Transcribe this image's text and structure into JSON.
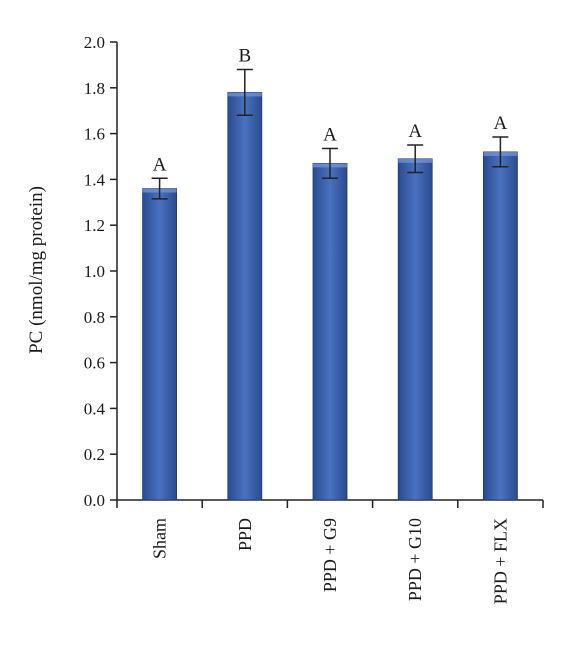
{
  "chart_data": {
    "type": "bar",
    "title": "",
    "xlabel": "",
    "ylabel": "PC (nmol/mg protein)",
    "ylim": [
      0,
      2.0
    ],
    "yticks": [
      "0.0",
      "0.2",
      "0.4",
      "0.6",
      "0.8",
      "1.0",
      "1.2",
      "1.4",
      "1.6",
      "1.8",
      "2.0"
    ],
    "categories": [
      "Sham",
      "PPD",
      "PPD + G9",
      "PPD + G10",
      "PPD + FLX"
    ],
    "values": [
      1.36,
      1.78,
      1.47,
      1.49,
      1.52
    ],
    "errors": [
      0.045,
      0.1,
      0.065,
      0.06,
      0.065
    ],
    "significance": [
      "A",
      "B",
      "A",
      "A",
      "A"
    ],
    "bar_color": "#3b5fa8",
    "grid": false,
    "legend": "none"
  }
}
